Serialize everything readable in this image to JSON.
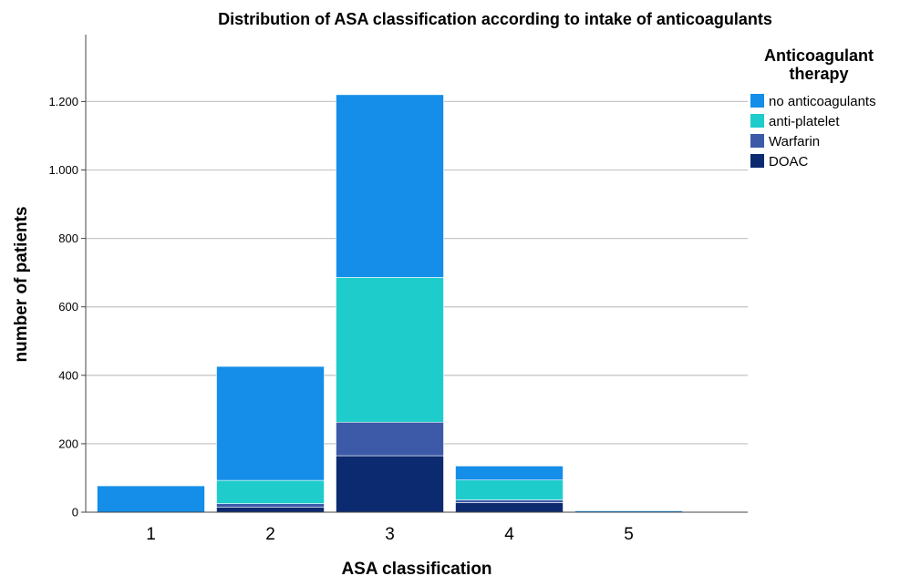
{
  "chart_data": {
    "type": "bar",
    "stacked": true,
    "title": "Distribution of ASA classification according to intake of anticoagulants",
    "xlabel": "ASA classification",
    "ylabel": "number of patients",
    "categories": [
      "1",
      "2",
      "3",
      "4",
      "5"
    ],
    "ylim": [
      0,
      1400
    ],
    "yticks": [
      0,
      200,
      400,
      600,
      800,
      1000,
      1200
    ],
    "ytick_labels": [
      "0",
      "200",
      "400",
      "600",
      "800",
      "1.000",
      "1.200"
    ],
    "grid": "horizontal",
    "legend": {
      "title": "Anticoagulant therapy",
      "title_lines": [
        "Anticoagulant",
        "therapy"
      ],
      "position": "top-right"
    },
    "series": [
      {
        "name": "DOAC",
        "color": "#0b2a6f",
        "values": [
          0,
          15,
          165,
          28,
          0
        ]
      },
      {
        "name": "Warfarin",
        "color": "#3c5aa8",
        "values": [
          0,
          10,
          98,
          8,
          0
        ]
      },
      {
        "name": "anti-platelet",
        "color": "#1fcccc",
        "values": [
          0,
          68,
          423,
          58,
          0
        ]
      },
      {
        "name": "no anticoagulants",
        "color": "#148ee8",
        "values": [
          77,
          333,
          534,
          41,
          4
        ]
      }
    ],
    "legend_order": [
      "no anticoagulants",
      "anti-platelet",
      "Warfarin",
      "DOAC"
    ]
  }
}
